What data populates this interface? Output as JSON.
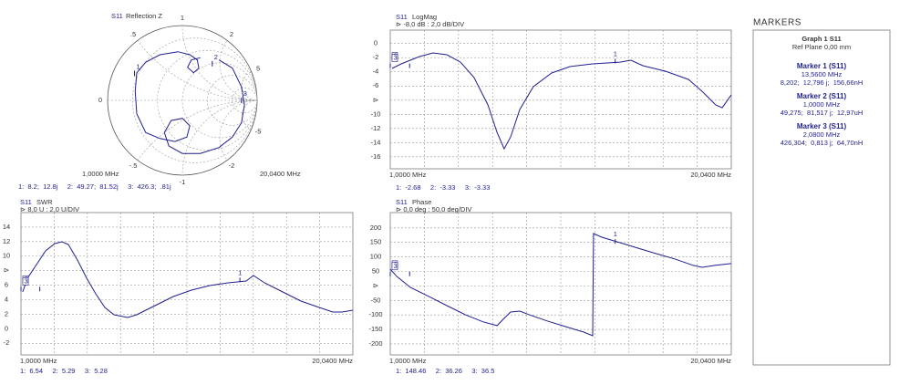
{
  "chart_data": [
    {
      "type": "smith",
      "title": "S11",
      "subtitle": "Reflection Z",
      "color": "#1f1f8f",
      "x": [
        0.49,
        0.67,
        0.79,
        0.83,
        0.79,
        0.67,
        0.49,
        0.24,
        0,
        -0.18,
        -0.24,
        -0.15,
        0,
        0.1,
        0.06,
        -0.1,
        -0.3,
        -0.49,
        -0.61,
        -0.63,
        -0.61,
        -0.49,
        -0.3,
        -0.06,
        0.1,
        0.2,
        0.22,
        0.15,
        0.07,
        0.12,
        0.24
      ],
      "y": [
        0.54,
        0.43,
        0.18,
        -0.06,
        -0.3,
        -0.49,
        -0.63,
        -0.71,
        -0.71,
        -0.61,
        -0.43,
        -0.27,
        -0.24,
        -0.34,
        -0.49,
        -0.55,
        -0.51,
        -0.43,
        -0.18,
        0.12,
        0.37,
        0.51,
        0.61,
        0.65,
        0.61,
        0.54,
        0.43,
        0.37,
        0.44,
        0.54,
        0.57
      ],
      "resistance_grid": [
        0.2,
        0.5,
        1,
        2,
        5
      ],
      "reactance_ticks": [
        {
          "value": 0,
          "label": "0"
        },
        {
          "value": 0.5,
          "label": ".5"
        },
        1,
        2,
        5,
        {
          "value": -0.5,
          "label": "-.5"
        },
        {
          "value": -1,
          "label": "-1"
        },
        {
          "value": -2,
          "label": "-2"
        },
        {
          "value": -5,
          "label": "-5"
        }
      ],
      "freq_labels": [
        "1,0000 MHz",
        "20,0400 MHz"
      ],
      "markers": [
        {
          "label": "1",
          "x": -0.64,
          "y": 0.36
        },
        {
          "label": "2",
          "x": 0.4,
          "y": 0.49
        },
        {
          "label": "3",
          "x": 0.79,
          "y": 0.0
        }
      ],
      "readout": "1:  8.2;  12.8j     2:  49.27;  81.52j     3:  426.3;  .81j"
    },
    {
      "type": "line",
      "title": "S11",
      "subtitle": "LogMag",
      "scale": "⊳ -8,0 dB : 2,0 dB/DIV",
      "color": "#1f1f8f",
      "x": [
        1.1,
        1.61,
        2.63,
        3.39,
        4.16,
        4.92,
        5.68,
        6.45,
        6.96,
        7.36,
        7.72,
        8.23,
        8.99,
        10.01,
        11.03,
        12.3,
        13.83,
        14.44,
        15.1,
        16.38,
        17.65,
        18.41,
        19.17,
        19.53,
        20.04
      ],
      "values": [
        -3.52,
        -2.87,
        -1.84,
        -1.33,
        -1.58,
        -2.62,
        -4.81,
        -8.68,
        -12.55,
        -14.87,
        -13.2,
        -9.33,
        -6.1,
        -4.16,
        -3.26,
        -2.87,
        -2.62,
        -2.36,
        -3.13,
        -3.91,
        -5.07,
        -6.75,
        -8.68,
        -9.07,
        -7.26
      ],
      "xlim": [
        1,
        20.04
      ],
      "ylim": [
        -17.7,
        1.9
      ],
      "yticks": [
        0,
        -2,
        -4,
        -6,
        {
          "value": -8,
          "label": "⊳"
        },
        -10,
        -12,
        -14,
        -16
      ],
      "freq_labels": [
        "1,0000 MHz",
        "20,0400 MHz"
      ],
      "markers": [
        {
          "label": "1",
          "x": 13.56,
          "value": -2.68
        },
        {
          "label": "2",
          "x": 1.0,
          "value": -3.33
        },
        {
          "label": "3",
          "x": 2.08,
          "value": -3.33
        }
      ],
      "readout": "1:  -2.68     2:  -3.33     3:  -3.33"
    },
    {
      "type": "line",
      "title": "S11",
      "subtitle": "SWR",
      "scale": "⊳ 8,0 U : 2,0 U/DIV",
      "color": "#1f1f8f",
      "x": [
        1.1,
        1.37,
        1.89,
        2.41,
        2.94,
        3.35,
        3.72,
        4.24,
        4.77,
        5.29,
        5.81,
        6.34,
        7.12,
        7.64,
        8.69,
        9.74,
        10.78,
        11.83,
        12.88,
        13.92,
        14.34,
        14.97,
        16.02,
        17.06,
        18.11,
        18.89,
        19.41,
        20.04
      ],
      "values": [
        5.07,
        6.95,
        8.84,
        10.72,
        11.73,
        11.98,
        11.6,
        9.47,
        6.95,
        4.82,
        2.93,
        1.93,
        1.55,
        1.93,
        3.19,
        4.44,
        5.32,
        5.95,
        6.33,
        6.58,
        7.33,
        6.33,
        5.07,
        3.81,
        2.93,
        2.31,
        2.31,
        2.56
      ],
      "xlim": [
        1,
        20.04
      ],
      "ylim": [
        -3.6,
        16
      ],
      "yticks": [
        14,
        12,
        10,
        {
          "value": 8,
          "label": "⊳"
        },
        6,
        4,
        2,
        0,
        -2
      ],
      "freq_labels": [
        "1,0000 MHz",
        "20,0400 MHz"
      ],
      "markers": [
        {
          "label": "1",
          "x": 13.56,
          "value": 6.54
        },
        {
          "label": "2",
          "x": 1.0,
          "value": 5.29
        },
        {
          "label": "3",
          "x": 2.08,
          "value": 5.28
        }
      ],
      "readout": "1:  6.54     2:  5.29     3:  5.28"
    },
    {
      "type": "line",
      "title": "S11",
      "subtitle": "Phase",
      "scale": "⊳ 0,0 deg : 50,0 deg/DIV",
      "color": "#1f1f8f",
      "x": [
        1.0,
        1.36,
        2.12,
        3.14,
        4.16,
        5.17,
        6.19,
        6.96,
        7.31,
        7.72,
        8.23,
        8.74,
        9.76,
        10.77,
        11.79,
        12.3,
        12.35,
        12.81,
        13.83,
        14.85,
        15.87,
        16.88,
        17.9,
        18.41,
        19.17,
        20.04
      ],
      "values": [
        58,
        33,
        -5,
        -36,
        -68,
        -99,
        -124,
        -137,
        -115,
        -90,
        -87,
        -99,
        -121,
        -140,
        -159,
        -172,
        181,
        168,
        149,
        130,
        111,
        93,
        71,
        64,
        71,
        77
      ],
      "xlim": [
        1,
        20.04
      ],
      "ylim": [
        -238,
        253
      ],
      "yticks": [
        200,
        150,
        100,
        50,
        {
          "value": 0,
          "label": "⊳"
        },
        -50,
        -100,
        -150,
        -200
      ],
      "freq_labels": [
        "1,0000 MHz",
        "20,0400 MHz"
      ],
      "markers": [
        {
          "label": "1",
          "x": 13.56,
          "value": 148.46
        },
        {
          "label": "2",
          "x": 1.0,
          "value": 36.26
        },
        {
          "label": "3",
          "x": 2.08,
          "value": 36.5
        }
      ],
      "readout": "1:  148.46     2:  36.26     3:  36.5"
    }
  ],
  "markers_panel": {
    "title": "MARKERS",
    "graph": "Graph 1 S11",
    "ref_plane": "Ref Plane 0,00 mm",
    "entries": [
      {
        "name": "Marker 1 (S11)",
        "freq": "13,5600 MHz",
        "value": "8,202;  12,796 j;  156,66nH"
      },
      {
        "name": "Marker 2 (S11)",
        "freq": "1,0000 MHz",
        "value": "49,275;  81,517 j;  12,97uH"
      },
      {
        "name": "Marker 3 (S11)",
        "freq": "2,0800 MHz",
        "value": "426,304;  0,813 j;  64,70nH"
      }
    ]
  }
}
